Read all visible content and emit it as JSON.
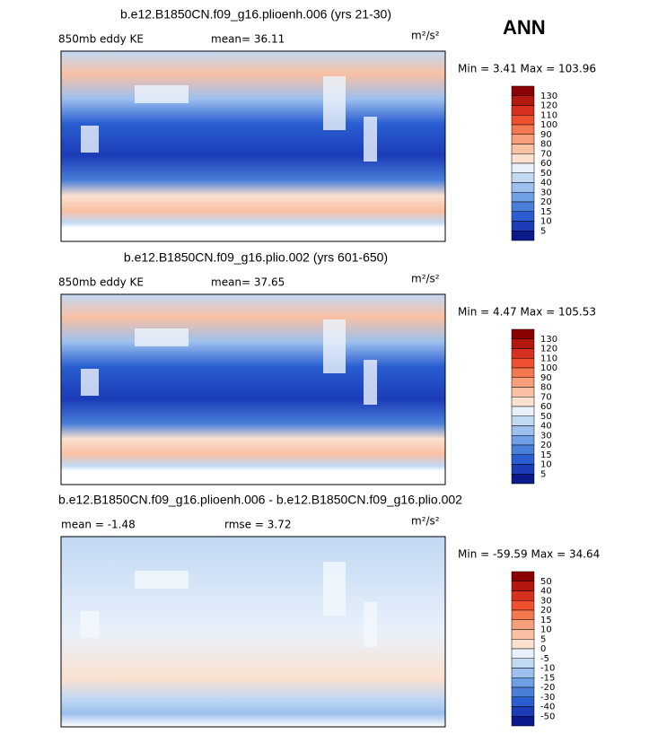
{
  "annotation": "ANN",
  "panels": [
    {
      "title": "b.e12.B1850CN.f09_g16.plioenh.006 (yrs 21-30)",
      "left_label": "850mb eddy KE",
      "center_label": "mean=  36.11",
      "units": "m²/s²",
      "minmax": "Min =    3.41 Max = 103.96",
      "colorbar": {
        "labels": [
          130,
          120,
          110,
          100,
          90,
          80,
          70,
          60,
          50,
          40,
          30,
          20,
          15,
          10,
          5
        ],
        "colors": [
          "#8b0000",
          "#b2180f",
          "#d7301f",
          "#ef5030",
          "#f4784f",
          "#f79e7c",
          "#f9c0a4",
          "#fbe0cf",
          "#e8f1fb",
          "#c2d9f4",
          "#9dc0ee",
          "#6f9fe4",
          "#4a7fd9",
          "#2a5ed0",
          "#1c3cb8",
          "#0a1a8a"
        ]
      }
    },
    {
      "title": "b.e12.B1850CN.f09_g16.plio.002 (yrs 601-650)",
      "left_label": "850mb eddy KE",
      "center_label": "mean=  37.65",
      "units": "m²/s²",
      "minmax": "Min =    4.47 Max = 105.53",
      "colorbar": {
        "labels": [
          130,
          120,
          110,
          100,
          90,
          80,
          70,
          60,
          50,
          40,
          30,
          20,
          15,
          10,
          5
        ],
        "colors": [
          "#8b0000",
          "#b2180f",
          "#d7301f",
          "#ef5030",
          "#f4784f",
          "#f79e7c",
          "#f9c0a4",
          "#fbe0cf",
          "#e8f1fb",
          "#c2d9f4",
          "#9dc0ee",
          "#6f9fe4",
          "#4a7fd9",
          "#2a5ed0",
          "#1c3cb8",
          "#0a1a8a"
        ]
      }
    },
    {
      "title": "b.e12.B1850CN.f09_g16.plioenh.006 - b.e12.B1850CN.f09_g16.plio.002",
      "left_label": "mean =  -1.48",
      "center_label": "rmse =    3.72",
      "units": "m²/s²",
      "minmax": "Min = -59.59 Max =  34.64",
      "colorbar": {
        "labels": [
          50,
          40,
          30,
          20,
          15,
          10,
          5,
          0,
          -5,
          -10,
          -15,
          -20,
          -30,
          -40,
          -50
        ],
        "colors": [
          "#8b0000",
          "#b2180f",
          "#d7301f",
          "#ef5030",
          "#f4784f",
          "#f79e7c",
          "#f9c0a4",
          "#fbe0cf",
          "#e8f1fb",
          "#c2d9f4",
          "#9dc0ee",
          "#6f9fe4",
          "#4a7fd9",
          "#2a5ed0",
          "#1c3cb8",
          "#0a1a8a"
        ]
      }
    }
  ]
}
